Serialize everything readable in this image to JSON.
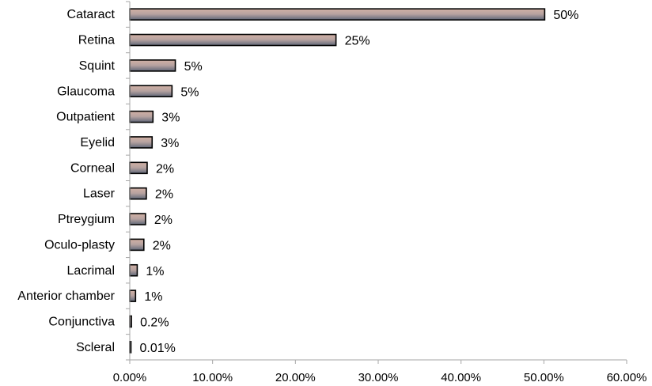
{
  "chart_data": {
    "type": "bar",
    "orientation": "horizontal",
    "categories": [
      "Cataract",
      "Retina",
      "Squint",
      "Glaucoma",
      "Outpatient",
      "Eyelid",
      "Corneal",
      "Laser",
      "Ptreygium",
      "Oculo-plasty",
      "Lacrimal",
      "Anterior chamber",
      "Conjunctiva",
      "Scleral"
    ],
    "values": [
      50.1,
      24.9,
      5.5,
      5.1,
      2.8,
      2.7,
      2.1,
      2.0,
      1.9,
      1.7,
      0.9,
      0.7,
      0.2,
      0.01
    ],
    "data_labels": [
      "50%",
      "25%",
      "5%",
      "5%",
      "3%",
      "3%",
      "2%",
      "2%",
      "2%",
      "2%",
      "1%",
      "1%",
      "0.2%",
      "0.01%"
    ],
    "xlim": [
      0,
      60
    ],
    "x_ticks": [
      0,
      10,
      20,
      30,
      40,
      50,
      60
    ],
    "x_tick_labels": [
      "0.00%",
      "10.00%",
      "20.00%",
      "30.00%",
      "40.00%",
      "50.00%",
      "60.00%"
    ],
    "title": "",
    "xlabel": "",
    "ylabel": "",
    "grid": false,
    "legend": "none",
    "colors": {
      "bar_top": "#d2b1a5",
      "bar_bottom": "#5f6778",
      "bar_outline": "#000000",
      "axis": "#a6a6a6"
    }
  }
}
